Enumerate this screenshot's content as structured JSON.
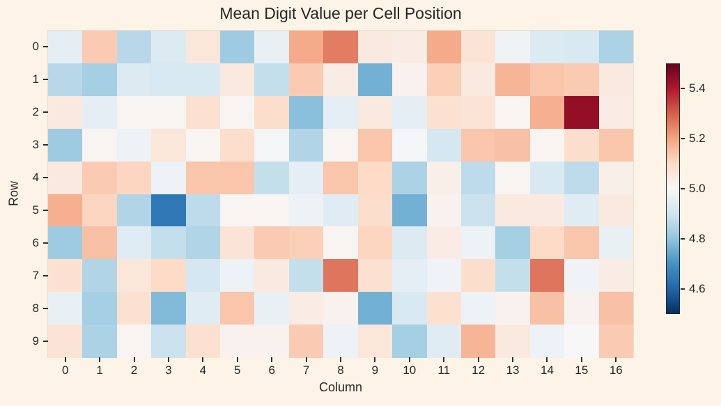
{
  "chart_data": {
    "type": "heatmap",
    "title": "Mean Digit Value per Cell Position",
    "xlabel": "Column",
    "ylabel": "Row",
    "x_tick_labels": [
      "0",
      "1",
      "2",
      "3",
      "4",
      "5",
      "6",
      "7",
      "8",
      "9",
      "10",
      "11",
      "12",
      "13",
      "14",
      "15",
      "16"
    ],
    "y_tick_labels": [
      "0",
      "1",
      "2",
      "3",
      "4",
      "5",
      "6",
      "7",
      "8",
      "9"
    ],
    "colormap": "RdBu_r",
    "colormap_stops": [
      "#053061",
      "#2166ac",
      "#4393c3",
      "#92c5de",
      "#d1e5f0",
      "#f7f7f7",
      "#fddbc7",
      "#f4a582",
      "#d6604d",
      "#b2182b",
      "#67001f"
    ],
    "vmin": 4.5,
    "vmax": 5.5,
    "colorbar_tick_values": [
      5.4,
      5.2,
      5.0,
      4.8,
      4.6
    ],
    "colorbar_tick_labels": [
      "5.4",
      "5.2",
      "5.0",
      "4.8",
      "4.6"
    ],
    "background_color": "#fdf4e7",
    "text_color": "#262626",
    "grid": false,
    "legend_position": "right-colorbar",
    "values": [
      [
        4.95,
        5.13,
        4.86,
        4.93,
        5.06,
        4.82,
        4.96,
        5.19,
        5.26,
        5.05,
        5.04,
        5.19,
        5.07,
        4.98,
        4.93,
        4.92,
        4.84
      ],
      [
        4.86,
        4.83,
        4.93,
        4.92,
        4.92,
        5.05,
        4.88,
        5.13,
        5.04,
        4.76,
        5.02,
        5.12,
        5.05,
        5.17,
        5.14,
        5.13,
        5.05
      ],
      [
        5.05,
        4.95,
        5.01,
        5.01,
        5.08,
        5.01,
        5.09,
        4.79,
        4.95,
        5.05,
        4.95,
        5.08,
        5.07,
        5.01,
        5.18,
        5.44,
        5.04
      ],
      [
        4.82,
        5.01,
        4.97,
        5.06,
        5.01,
        5.09,
        4.99,
        4.85,
        5.01,
        5.14,
        4.99,
        4.91,
        5.14,
        5.15,
        5.01,
        5.09,
        5.14
      ],
      [
        5.05,
        5.13,
        5.11,
        4.97,
        5.14,
        5.14,
        4.88,
        4.95,
        5.14,
        5.1,
        4.84,
        5.03,
        4.87,
        5.01,
        4.92,
        4.87,
        5.03
      ],
      [
        5.18,
        5.11,
        4.85,
        4.64,
        4.87,
        5.01,
        5.01,
        4.97,
        4.94,
        5.09,
        4.76,
        5.02,
        4.89,
        5.05,
        5.05,
        4.94,
        5.05
      ],
      [
        4.82,
        5.15,
        4.94,
        4.88,
        4.85,
        5.07,
        5.13,
        5.12,
        5.01,
        5.11,
        4.93,
        5.04,
        4.97,
        4.83,
        5.1,
        5.14,
        4.96
      ],
      [
        5.08,
        4.85,
        5.06,
        5.1,
        4.91,
        4.97,
        5.05,
        4.88,
        5.27,
        5.08,
        4.95,
        4.98,
        5.09,
        4.88,
        5.27,
        4.98,
        5.04
      ],
      [
        4.96,
        4.83,
        5.08,
        4.78,
        4.94,
        5.14,
        4.96,
        5.04,
        5.02,
        4.76,
        4.92,
        5.08,
        4.97,
        5.02,
        5.15,
        5.02,
        5.15
      ],
      [
        5.07,
        4.84,
        5.01,
        4.89,
        5.08,
        5.02,
        5.02,
        5.13,
        4.97,
        5.06,
        4.83,
        4.94,
        5.17,
        5.05,
        4.97,
        5.0,
        5.13
      ]
    ]
  }
}
